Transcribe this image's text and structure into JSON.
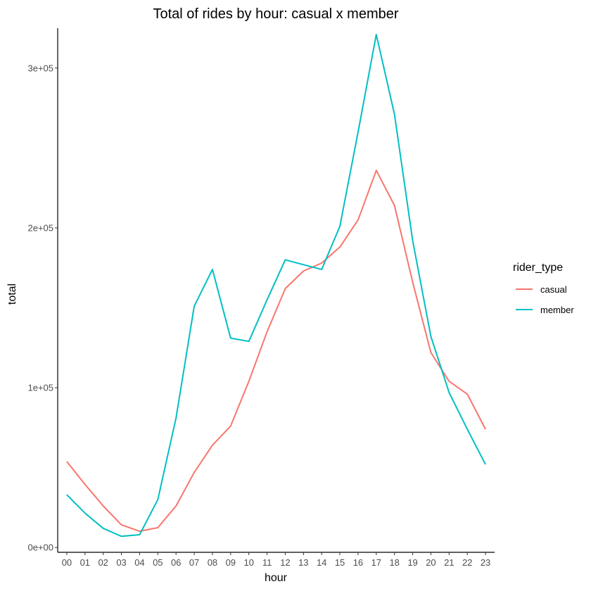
{
  "chart_data": {
    "type": "line",
    "title": "Total of rides by hour: casual x member",
    "xlabel": "hour",
    "ylabel": "total",
    "categories": [
      "00",
      "01",
      "02",
      "03",
      "04",
      "05",
      "06",
      "07",
      "08",
      "09",
      "10",
      "11",
      "12",
      "13",
      "14",
      "15",
      "16",
      "17",
      "18",
      "19",
      "20",
      "21",
      "22",
      "23"
    ],
    "y_ticks": [
      {
        "value": 0,
        "label": "0e+00"
      },
      {
        "value": 100000,
        "label": "1e+05"
      },
      {
        "value": 200000,
        "label": "2e+05"
      },
      {
        "value": 300000,
        "label": "3e+05"
      }
    ],
    "ylim": [
      -3000,
      325000
    ],
    "grid": false,
    "legend": {
      "title": "rider_type",
      "position": "right"
    },
    "series": [
      {
        "name": "casual",
        "color": "#F8766D",
        "values": [
          53800,
          39500,
          26000,
          14200,
          10200,
          12400,
          26000,
          47000,
          64000,
          76000,
          104000,
          135000,
          162000,
          173000,
          178000,
          188000,
          205000,
          236000,
          214000,
          166000,
          122000,
          104000,
          96000,
          74000
        ]
      },
      {
        "name": "member",
        "color": "#00BFC4",
        "values": [
          33000,
          21500,
          12000,
          7000,
          8000,
          30000,
          81000,
          151000,
          174000,
          131000,
          129000,
          155000,
          180000,
          177000,
          174000,
          201000,
          260000,
          321000,
          271000,
          192000,
          132000,
          97000,
          74000,
          52000
        ]
      }
    ]
  }
}
